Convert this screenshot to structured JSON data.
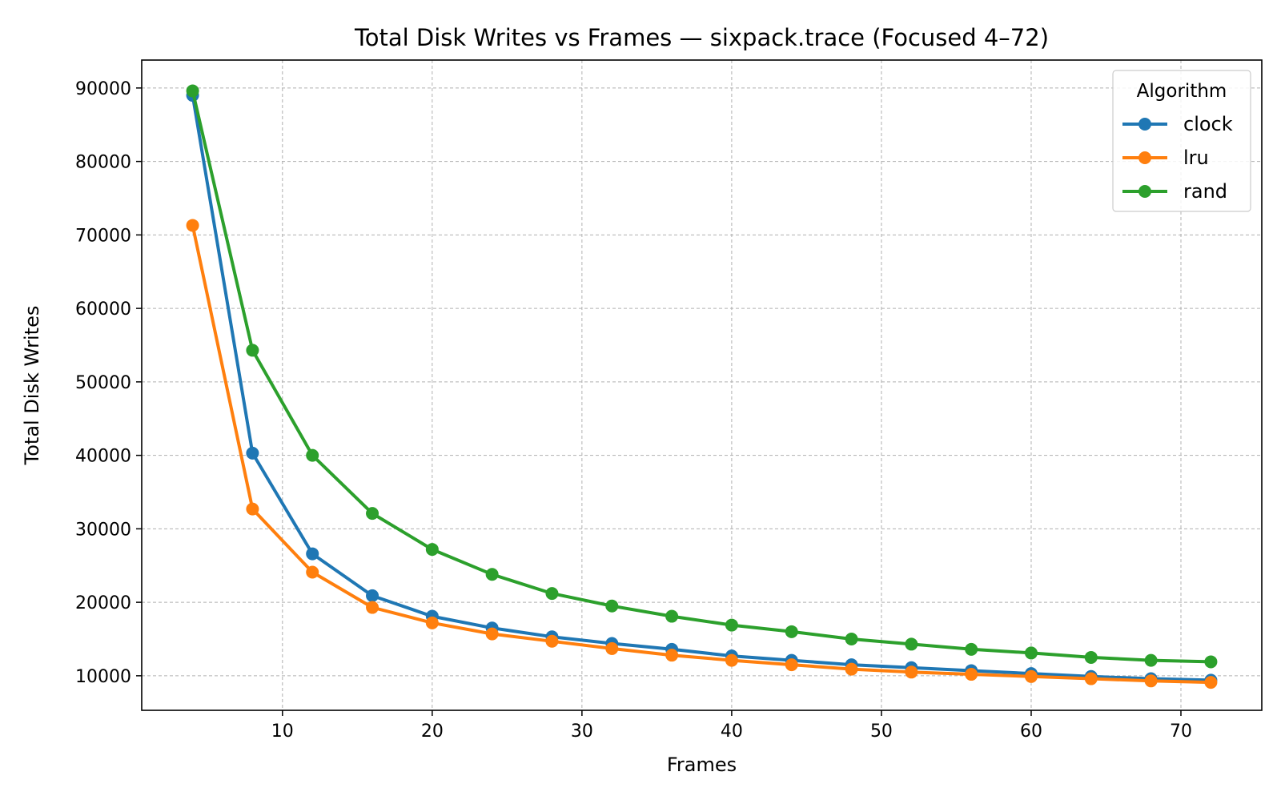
{
  "chart_data": {
    "type": "line",
    "title": "Total Disk Writes vs Frames — sixpack.trace (Focused 4–72)",
    "xlabel": "Frames",
    "ylabel": "Total Disk Writes",
    "x": [
      4,
      8,
      12,
      16,
      20,
      24,
      28,
      32,
      36,
      40,
      44,
      48,
      52,
      56,
      60,
      64,
      68,
      72
    ],
    "xlim": [
      0.6,
      75.4
    ],
    "ylim": [
      5300,
      93800
    ],
    "xticks": [
      10,
      20,
      30,
      40,
      50,
      60,
      70
    ],
    "xtick_labels": [
      "10",
      "20",
      "30",
      "40",
      "50",
      "60",
      "70"
    ],
    "yticks": [
      10000,
      20000,
      30000,
      40000,
      50000,
      60000,
      70000,
      80000,
      90000
    ],
    "ytick_labels": [
      "10000",
      "20000",
      "30000",
      "40000",
      "50000",
      "60000",
      "70000",
      "80000",
      "90000"
    ],
    "grid": true,
    "grid_style": "dashed",
    "markers": "circle",
    "legend": {
      "title": "Algorithm",
      "position": "top-right"
    },
    "series": [
      {
        "name": "clock",
        "color": "#1f77b4",
        "values": [
          89000,
          40300,
          26600,
          20900,
          18100,
          16500,
          15300,
          14400,
          13600,
          12700,
          12100,
          11500,
          11100,
          10700,
          10300,
          9900,
          9600,
          9400
        ]
      },
      {
        "name": "lru",
        "color": "#ff7f0e",
        "values": [
          71300,
          32700,
          24100,
          19300,
          17200,
          15700,
          14700,
          13700,
          12800,
          12100,
          11500,
          10900,
          10500,
          10200,
          9900,
          9600,
          9300,
          9100
        ]
      },
      {
        "name": "rand",
        "color": "#2ca02c",
        "values": [
          89600,
          54300,
          40000,
          32100,
          27200,
          23800,
          21200,
          19500,
          18100,
          16900,
          16000,
          15000,
          14300,
          13600,
          13100,
          12500,
          12100,
          11900
        ]
      }
    ]
  }
}
